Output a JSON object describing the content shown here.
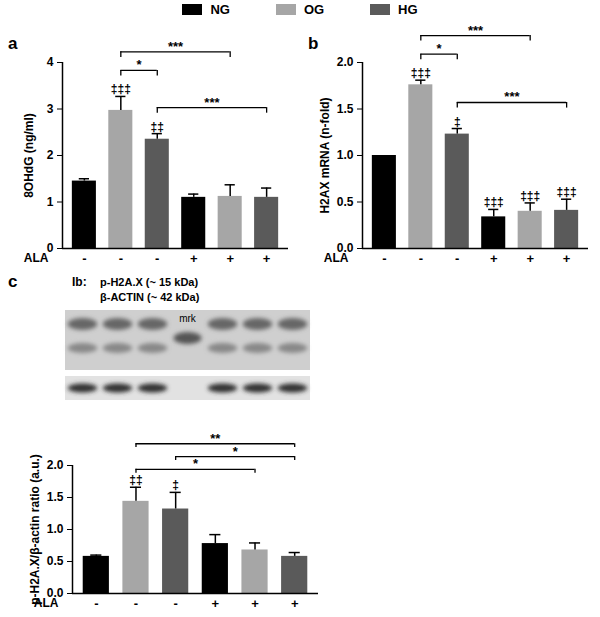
{
  "chart_data": [
    {
      "type": "bar",
      "panel": "a",
      "y_label": "8OHdG (ng/ml)",
      "x_label": "ALA",
      "categories": [
        "-",
        "+"
      ],
      "series": [
        {
          "name": "NG",
          "color": "#000000",
          "values": [
            1.45,
            1.1
          ],
          "errors": [
            0.05,
            0.07
          ],
          "annotations": [
            null,
            null
          ]
        },
        {
          "name": "OG",
          "color": "#a6a6a6",
          "values": [
            2.97,
            1.12
          ],
          "errors": [
            0.3,
            0.25
          ],
          "annotations": [
            "‡‡‡",
            null
          ]
        },
        {
          "name": "HG",
          "color": "#5a5a5a",
          "values": [
            2.35,
            1.1
          ],
          "errors": [
            0.12,
            0.2
          ],
          "annotations": [
            "‡‡",
            null
          ]
        }
      ],
      "comparisons": [
        {
          "from": {
            "series": "OG",
            "category": "-"
          },
          "to": {
            "series": "HG",
            "category": "-"
          },
          "label": "*"
        },
        {
          "from": {
            "series": "OG",
            "category": "-"
          },
          "to": {
            "series": "OG",
            "category": "+"
          },
          "label": "***"
        },
        {
          "from": {
            "series": "HG",
            "category": "-"
          },
          "to": {
            "series": "HG",
            "category": "+"
          },
          "label": "***"
        }
      ],
      "ylim": [
        0,
        4
      ],
      "yticks": [
        0,
        1,
        2,
        3,
        4
      ],
      "grid": false
    },
    {
      "type": "bar",
      "panel": "b",
      "y_label": "H2AX mRNA (n-fold)",
      "x_label": "ALA",
      "categories": [
        "-",
        "+"
      ],
      "series": [
        {
          "name": "NG",
          "color": "#000000",
          "values": [
            1.0,
            0.34
          ],
          "errors": [
            0,
            0.08
          ],
          "annotations": [
            null,
            "‡‡‡"
          ]
        },
        {
          "name": "OG",
          "color": "#a6a6a6",
          "values": [
            1.76,
            0.4
          ],
          "errors": [
            0.05,
            0.09
          ],
          "annotations": [
            "‡‡‡",
            "‡‡‡"
          ]
        },
        {
          "name": "HG",
          "color": "#5a5a5a",
          "values": [
            1.23,
            0.41
          ],
          "errors": [
            0.06,
            0.12
          ],
          "annotations": [
            "‡",
            "‡‡‡"
          ]
        }
      ],
      "comparisons": [
        {
          "from": {
            "series": "OG",
            "category": "-"
          },
          "to": {
            "series": "HG",
            "category": "-"
          },
          "label": "*"
        },
        {
          "from": {
            "series": "OG",
            "category": "-"
          },
          "to": {
            "series": "OG",
            "category": "+"
          },
          "label": "***"
        },
        {
          "from": {
            "series": "HG",
            "category": "-"
          },
          "to": {
            "series": "HG",
            "category": "+"
          },
          "label": "***"
        }
      ],
      "ylim": [
        0,
        2
      ],
      "yticks": [
        {
          "value": 0,
          "label": "0.0"
        },
        {
          "value": 0.5,
          "label": "0.5"
        },
        {
          "value": 1,
          "label": "1.0"
        },
        {
          "value": 1.5,
          "label": "1.5"
        },
        {
          "value": 2,
          "label": "2.0"
        }
      ],
      "grid": false
    },
    {
      "type": "bar",
      "panel": "c",
      "y_label": "p-H2A.X/β-actin ratio (a.u.)",
      "x_label": "ALA",
      "categories": [
        "-",
        "+"
      ],
      "series": [
        {
          "name": "NG",
          "color": "#000000",
          "values": [
            0.58,
            0.78
          ],
          "errors": [
            0.02,
            0.14
          ],
          "annotations": [
            null,
            null
          ]
        },
        {
          "name": "OG",
          "color": "#a6a6a6",
          "values": [
            1.44,
            0.68
          ],
          "errors": [
            0.22,
            0.11
          ],
          "annotations": [
            "‡‡",
            null
          ]
        },
        {
          "name": "HG",
          "color": "#5a5a5a",
          "values": [
            1.32,
            0.58
          ],
          "errors": [
            0.26,
            0.06
          ],
          "annotations": [
            "‡",
            null
          ]
        }
      ],
      "comparisons": [
        {
          "from": {
            "series": "OG",
            "category": "-"
          },
          "to": {
            "series": "OG",
            "category": "+"
          },
          "label": "*"
        },
        {
          "from": {
            "series": "HG",
            "category": "-"
          },
          "to": {
            "series": "HG",
            "category": "+"
          },
          "label": "*"
        },
        {
          "from": {
            "series": "OG",
            "category": "-"
          },
          "to": {
            "series": "HG",
            "category": "+"
          },
          "label": "**"
        }
      ],
      "ylim": [
        0,
        2
      ],
      "yticks": [
        {
          "value": 0,
          "label": "0.0"
        },
        {
          "value": 0.5,
          "label": "0.5"
        },
        {
          "value": 1,
          "label": "1.0"
        },
        {
          "value": 1.5,
          "label": "1.5"
        },
        {
          "value": 2,
          "label": "2.0"
        }
      ],
      "grid": false
    }
  ],
  "blot": {
    "prefix": "Ib:",
    "bands": [
      "p-H2A.X (~ 15 kDa)",
      "β-ACTIN (~ 42 kDa)"
    ],
    "marker_lane": "mrk"
  }
}
